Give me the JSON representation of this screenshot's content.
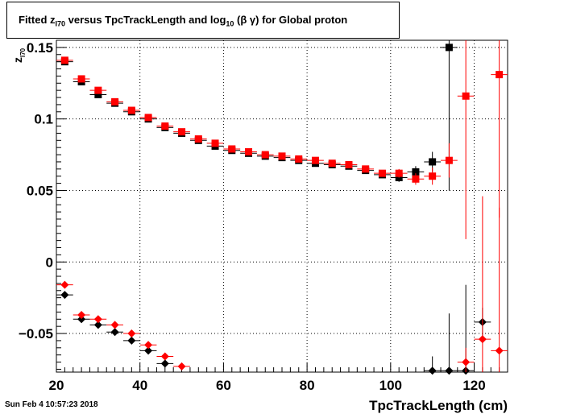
{
  "title": {
    "prefix": "Fitted  z",
    "sub1": "I70",
    "middle": "  versus TpcTrackLength and log",
    "sub2": "10",
    "suffix": " (β γ) for Global proton"
  },
  "timestamp": "Sun Feb  4 10:57:23 2018",
  "ylabel": {
    "main": "z",
    "sub": "I70"
  },
  "chart_data": {
    "type": "scatter",
    "xlabel": "TpcTrackLength (cm)",
    "xlim": [
      20,
      128
    ],
    "ylim": [
      -0.077,
      0.155
    ],
    "xticks": [
      20,
      40,
      60,
      80,
      100,
      120
    ],
    "yticks": [
      -0.05,
      0,
      0.05,
      0.1,
      0.15
    ],
    "ytick_labels": [
      "−0.05",
      "0",
      "0.05",
      "0.1",
      "0.15"
    ],
    "grid": true,
    "series": [
      {
        "marker": "square",
        "color": "#000000",
        "x": [
          22,
          26,
          30,
          34,
          38,
          42,
          46,
          50,
          54,
          58,
          62,
          66,
          70,
          74,
          78,
          82,
          86,
          90,
          94,
          98,
          102,
          106,
          110,
          114
        ],
        "y": [
          0.14,
          0.126,
          0.117,
          0.111,
          0.105,
          0.1,
          0.094,
          0.09,
          0.085,
          0.081,
          0.078,
          0.076,
          0.074,
          0.073,
          0.071,
          0.069,
          0.068,
          0.067,
          0.064,
          0.061,
          0.059,
          0.063,
          0.07,
          0.15
        ],
        "yerr": [
          0.002,
          0.002,
          0.002,
          0.002,
          0.002,
          0.002,
          0.002,
          0.002,
          0.002,
          0.002,
          0.002,
          0.002,
          0.002,
          0.002,
          0.002,
          0.002,
          0.002,
          0.002,
          0.002,
          0.002,
          0.003,
          0.004,
          0.007,
          0.1
        ]
      },
      {
        "marker": "square",
        "color": "#ff0000",
        "x": [
          22,
          26,
          30,
          34,
          38,
          42,
          46,
          50,
          54,
          58,
          62,
          66,
          70,
          74,
          78,
          82,
          86,
          90,
          94,
          98,
          102,
          106,
          110,
          114,
          118,
          126
        ],
        "y": [
          0.141,
          0.128,
          0.12,
          0.112,
          0.106,
          0.101,
          0.095,
          0.091,
          0.086,
          0.083,
          0.079,
          0.077,
          0.075,
          0.074,
          0.072,
          0.071,
          0.069,
          0.068,
          0.065,
          0.062,
          0.062,
          0.058,
          0.06,
          0.071,
          0.116,
          0.131
        ],
        "yerr": [
          0.002,
          0.002,
          0.002,
          0.002,
          0.002,
          0.002,
          0.002,
          0.002,
          0.002,
          0.002,
          0.002,
          0.002,
          0.002,
          0.002,
          0.002,
          0.002,
          0.002,
          0.002,
          0.002,
          0.002,
          0.003,
          0.004,
          0.006,
          0.012,
          0.1,
          0.1
        ]
      },
      {
        "marker": "diamond",
        "color": "#000000",
        "x": [
          22,
          26,
          30,
          34,
          38,
          42,
          46,
          110,
          114,
          118,
          122
        ],
        "y": [
          -0.023,
          -0.04,
          -0.044,
          -0.049,
          -0.055,
          -0.062,
          -0.071,
          -0.076,
          -0.076,
          -0.076,
          -0.042
        ],
        "yerr": [
          0.002,
          0.002,
          0.002,
          0.002,
          0.002,
          0.002,
          0.002,
          0.01,
          0.04,
          0.06,
          0.01
        ]
      },
      {
        "marker": "diamond",
        "color": "#ff0000",
        "x": [
          22,
          26,
          30,
          34,
          38,
          42,
          46,
          50,
          118,
          122,
          126
        ],
        "y": [
          -0.016,
          -0.037,
          -0.04,
          -0.044,
          -0.05,
          -0.058,
          -0.066,
          -0.073,
          -0.07,
          -0.054,
          -0.062
        ],
        "yerr": [
          0.002,
          0.002,
          0.002,
          0.002,
          0.002,
          0.002,
          0.002,
          0.002,
          0.01,
          0.1,
          0.1
        ]
      }
    ]
  }
}
